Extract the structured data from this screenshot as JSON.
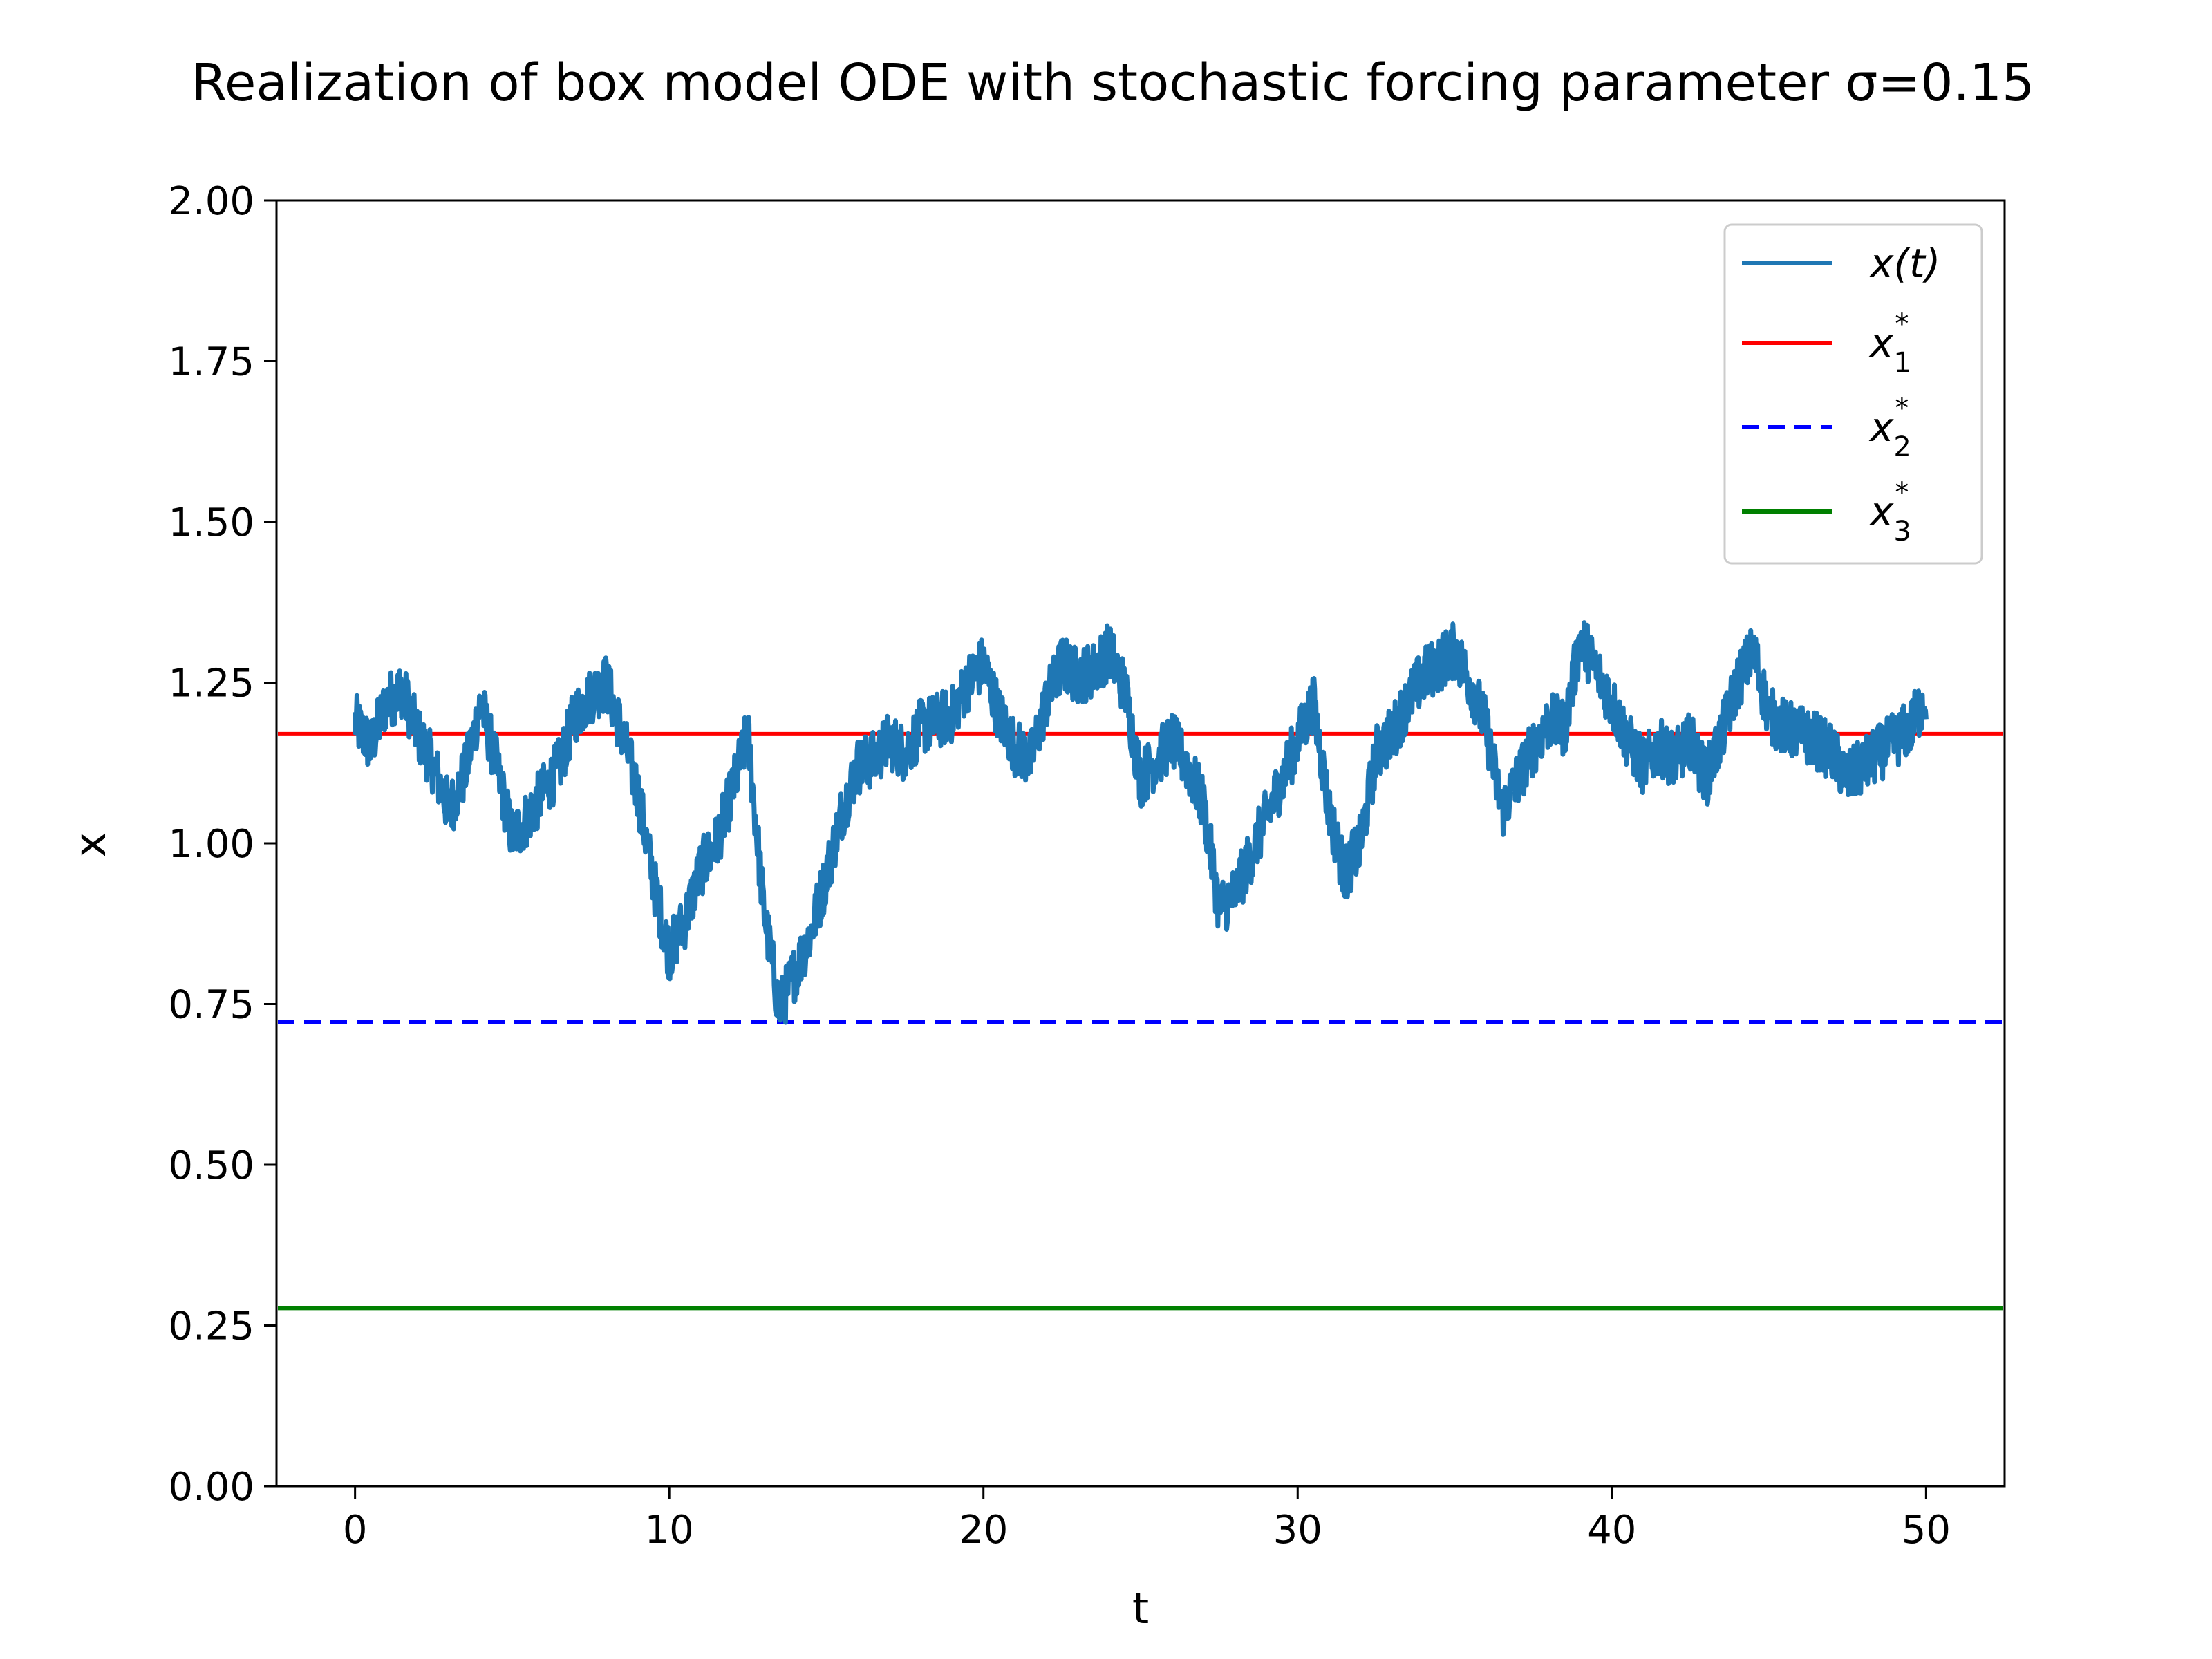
{
  "chart_data": {
    "type": "line",
    "title": "Realization of box model ODE with stochastic forcing parameter σ=0.15",
    "xlabel": "t",
    "ylabel": "x",
    "xlim": [
      -2.5,
      52.5
    ],
    "ylim": [
      0,
      2
    ],
    "x_ticks": [
      0,
      10,
      20,
      30,
      40,
      50
    ],
    "x_tick_labels": [
      "0",
      "10",
      "20",
      "30",
      "40",
      "50"
    ],
    "y_ticks": [
      0,
      0.25,
      0.5,
      0.75,
      1.0,
      1.25,
      1.5,
      1.75,
      2.0
    ],
    "y_tick_labels": [
      "0.00",
      "0.25",
      "0.50",
      "0.75",
      "1.00",
      "1.25",
      "1.50",
      "1.75",
      "2.00"
    ],
    "grid": false,
    "legend_position": "top-right",
    "series": [
      {
        "name": "x(t)",
        "color": "#1f77b4",
        "style": "solid",
        "noise_amplitude": 0.045,
        "x": [
          0,
          0.5,
          1,
          1.5,
          2,
          2.5,
          3,
          3.5,
          4,
          4.5,
          5,
          5.5,
          6,
          6.5,
          7,
          7.5,
          8,
          8.5,
          9,
          9.5,
          10,
          10.5,
          11,
          11.5,
          12,
          12.5,
          13,
          13.5,
          14,
          14.5,
          15,
          15.5,
          16,
          16.5,
          17,
          17.5,
          18,
          18.5,
          19,
          19.5,
          20,
          20.5,
          21,
          21.5,
          22,
          22.5,
          23,
          23.5,
          24,
          24.5,
          25,
          25.5,
          26,
          26.5,
          27,
          27.5,
          28,
          28.5,
          29,
          29.5,
          30,
          30.5,
          31,
          31.5,
          32,
          32.5,
          33,
          33.5,
          34,
          34.5,
          35,
          35.5,
          36,
          36.5,
          37,
          37.5,
          38,
          38.5,
          39,
          39.5,
          40,
          40.5,
          41,
          41.5,
          42,
          42.5,
          43,
          43.5,
          44,
          44.5,
          45,
          45.5,
          46,
          46.5,
          47,
          47.5,
          48,
          48.5,
          49,
          49.5,
          50
        ],
        "y": [
          1.19,
          1.15,
          1.22,
          1.24,
          1.17,
          1.12,
          1.05,
          1.11,
          1.22,
          1.12,
          1.01,
          1.04,
          1.08,
          1.12,
          1.2,
          1.23,
          1.25,
          1.17,
          1.08,
          0.94,
          0.83,
          0.88,
          0.96,
          1.0,
          1.08,
          1.17,
          0.9,
          0.74,
          0.8,
          0.86,
          0.95,
          1.05,
          1.12,
          1.13,
          1.16,
          1.14,
          1.18,
          1.19,
          1.2,
          1.25,
          1.28,
          1.2,
          1.15,
          1.13,
          1.22,
          1.28,
          1.26,
          1.27,
          1.3,
          1.24,
          1.1,
          1.13,
          1.16,
          1.12,
          1.06,
          0.9,
          0.92,
          0.98,
          1.04,
          1.1,
          1.16,
          1.22,
          1.05,
          0.95,
          1.0,
          1.14,
          1.17,
          1.22,
          1.26,
          1.28,
          1.3,
          1.25,
          1.18,
          1.05,
          1.1,
          1.15,
          1.19,
          1.18,
          1.32,
          1.27,
          1.22,
          1.16,
          1.12,
          1.15,
          1.13,
          1.16,
          1.1,
          1.17,
          1.25,
          1.3,
          1.2,
          1.18,
          1.17,
          1.16,
          1.14,
          1.1,
          1.12,
          1.14,
          1.16,
          1.18,
          1.23
        ]
      },
      {
        "name": "x*_1",
        "color": "#ff0000",
        "style": "solid",
        "y_constant": 1.17
      },
      {
        "name": "x*_2",
        "color": "#0000ff",
        "style": "dashed",
        "y_constant": 0.722
      },
      {
        "name": "x*_3",
        "color": "#008000",
        "style": "solid",
        "y_constant": 0.277
      }
    ],
    "legend": [
      {
        "main": "x(t)",
        "sup": "",
        "sub": ""
      },
      {
        "main": "x",
        "sup": "*",
        "sub": "1"
      },
      {
        "main": "x",
        "sup": "*",
        "sub": "2"
      },
      {
        "main": "x",
        "sup": "*",
        "sub": "3"
      }
    ]
  }
}
